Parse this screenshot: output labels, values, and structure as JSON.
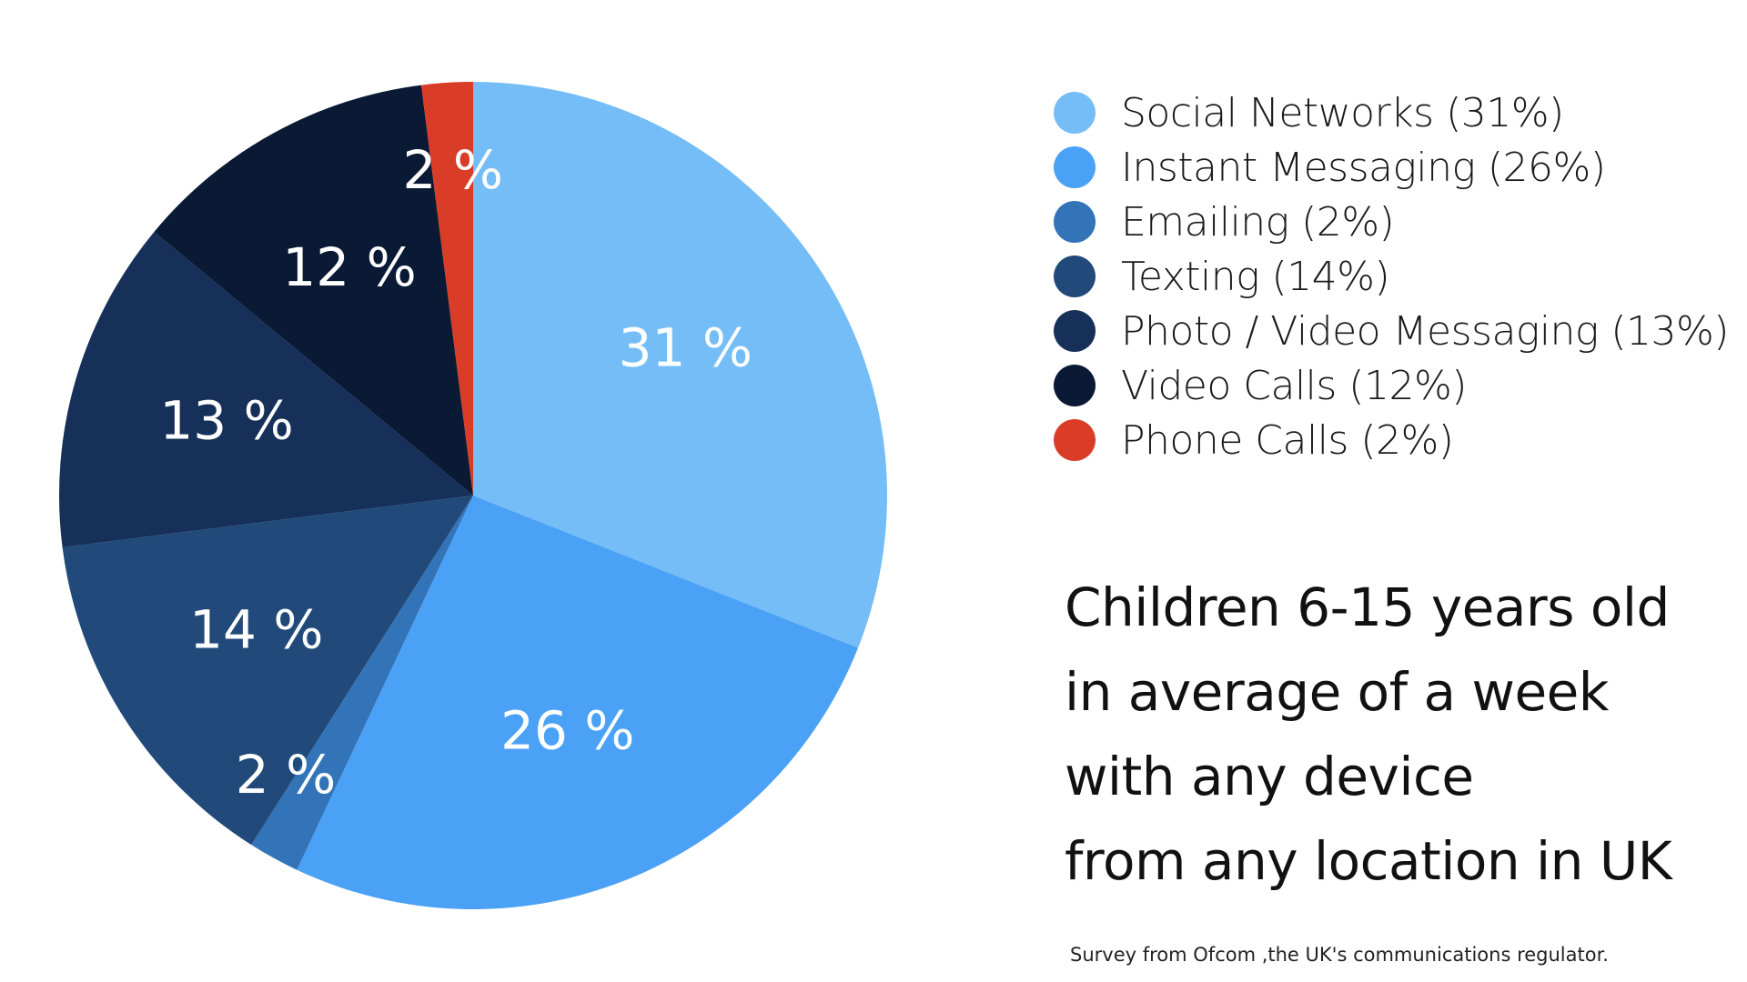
{
  "chart_data": {
    "type": "pie",
    "start_angle_deg": 0,
    "direction": "clockwise",
    "slices": [
      {
        "legend_label": "Social Networks (31%)",
        "value": 31,
        "data_label": "31 %",
        "color": "#74BDF7"
      },
      {
        "legend_label": "Instant Messaging (26%)",
        "value": 26,
        "data_label": "26 %",
        "color": "#4AA1F6"
      },
      {
        "legend_label": "Emailing (2%)",
        "value": 2,
        "data_label": "2 %",
        "color": "#3374B9"
      },
      {
        "legend_label": "Texting (14%)",
        "value": 14,
        "data_label": "14 %",
        "color": "#214A7A"
      },
      {
        "legend_label": "Photo / Video Messaging (13%)",
        "value": 13,
        "data_label": "13 %",
        "color": "#16305A"
      },
      {
        "legend_label": "Video Calls (12%)",
        "value": 12,
        "data_label": "12 %",
        "color": "#0A1934"
      },
      {
        "legend_label": "Phone Calls (2%)",
        "value": 2,
        "data_label": "2 %",
        "color": "#D93C27"
      }
    ],
    "legend_placement": "right"
  },
  "caption": {
    "lines": [
      "Children 6-15 years old",
      "in average of a week",
      "with any device",
      "from any location in UK"
    ]
  },
  "source_note": "Survey from Ofcom ,the UK's communications regulator."
}
